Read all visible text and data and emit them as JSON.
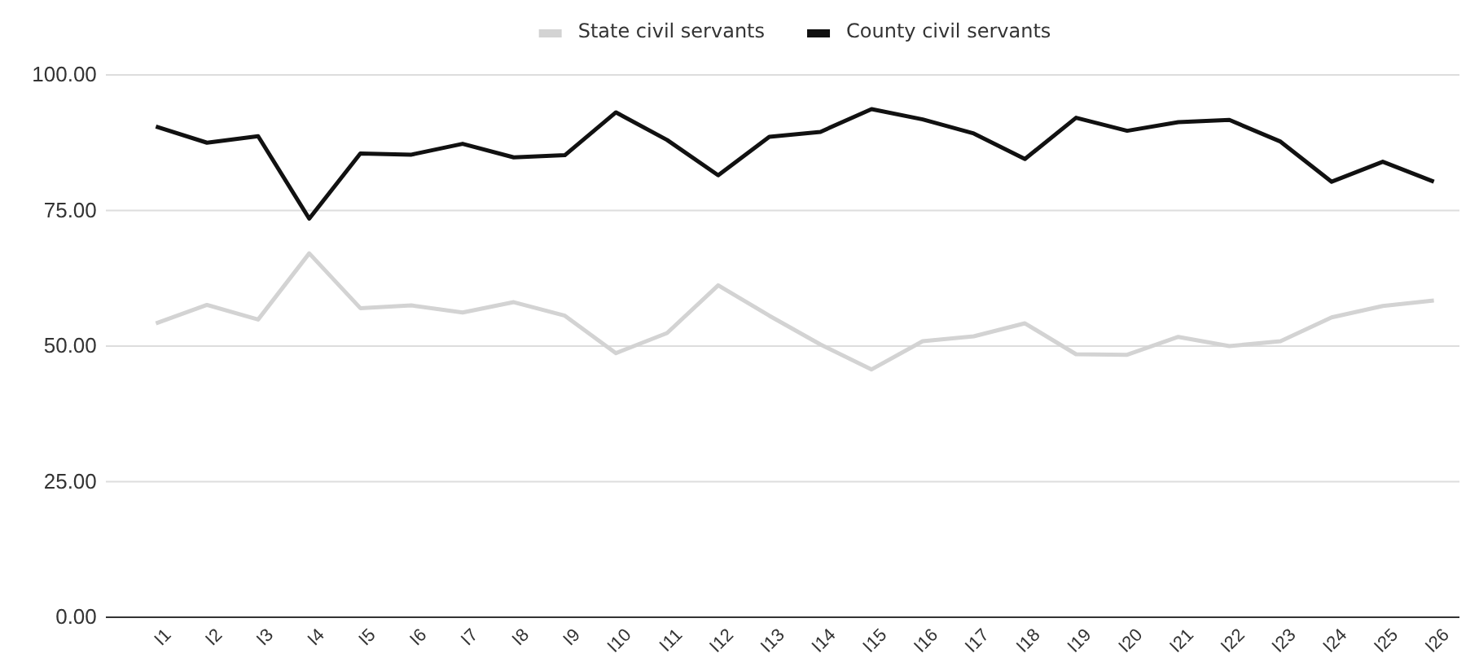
{
  "chart_data": {
    "type": "line",
    "categories": [
      "I1",
      "I2",
      "I3",
      "I4",
      "I5",
      "I6",
      "I7",
      "I8",
      "I9",
      "I10",
      "I11",
      "I12",
      "I13",
      "I14",
      "I15",
      "I16",
      "I17",
      "I18",
      "I19",
      "I20",
      "I21",
      "I22",
      "I23",
      "I24",
      "I25",
      "I26"
    ],
    "series": [
      {
        "name": "State civil servants",
        "color": "#d3d3d3",
        "values": [
          54.2,
          57.6,
          54.9,
          67.1,
          57.0,
          57.5,
          56.2,
          58.1,
          55.6,
          48.7,
          52.4,
          61.2,
          55.6,
          50.3,
          45.7,
          50.9,
          51.8,
          54.2,
          48.5,
          48.4,
          51.7,
          50.0,
          50.9,
          55.3,
          57.4,
          58.4
        ]
      },
      {
        "name": "County civil servants",
        "color": "#111111",
        "values": [
          90.5,
          87.5,
          88.7,
          73.5,
          85.5,
          85.3,
          87.3,
          84.8,
          85.2,
          93.1,
          88.0,
          81.5,
          88.6,
          89.5,
          93.7,
          91.8,
          89.2,
          84.5,
          92.1,
          89.7,
          91.3,
          91.7,
          87.7,
          80.3,
          84.0,
          80.3
        ]
      }
    ],
    "ylim": [
      0,
      100
    ],
    "yticks": [
      {
        "value": 0,
        "label": "0.00"
      },
      {
        "value": 25,
        "label": "25.00"
      },
      {
        "value": 50,
        "label": "50.00"
      },
      {
        "value": 75,
        "label": "75.00"
      },
      {
        "value": 100,
        "label": "100.00"
      }
    ],
    "grid": "y",
    "legend": "top",
    "marker": "none",
    "line_style": "solid"
  }
}
